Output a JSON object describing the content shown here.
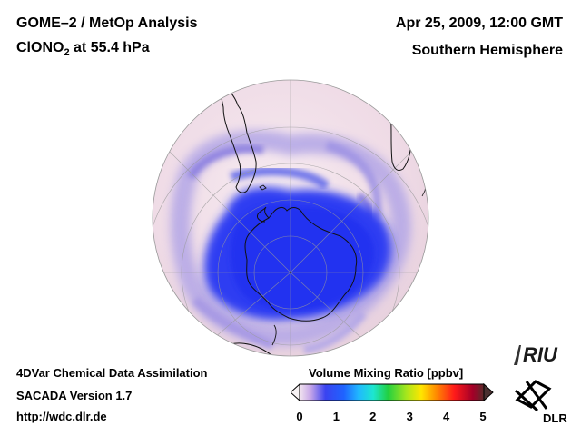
{
  "header": {
    "title_line1": "GOME–2 / MetOp Analysis",
    "species_prefix": "ClONO",
    "species_subscript": "2",
    "species_suffix": " at 55.4 hPa",
    "date": "Apr 25, 2009, 12:00 GMT",
    "region": "Southern Hemisphere"
  },
  "footer": {
    "method": "4DVar Chemical Data Assimilation",
    "version": "SACADA Version 1.7",
    "url": "http://wdc.dlr.de"
  },
  "colorbar": {
    "title": "Volume Mixing Ratio [ppbv]",
    "ticks": [
      "0",
      "1",
      "2",
      "3",
      "4",
      "5"
    ],
    "min": 0,
    "max": 5
  },
  "logos": {
    "riu": "RIU",
    "dlr": "DLR"
  },
  "colors": {
    "low_pink": "#f3e1ea",
    "blue_low": "#2f3df2",
    "purple": "#a79ee6",
    "land_outline": "#111111"
  }
}
